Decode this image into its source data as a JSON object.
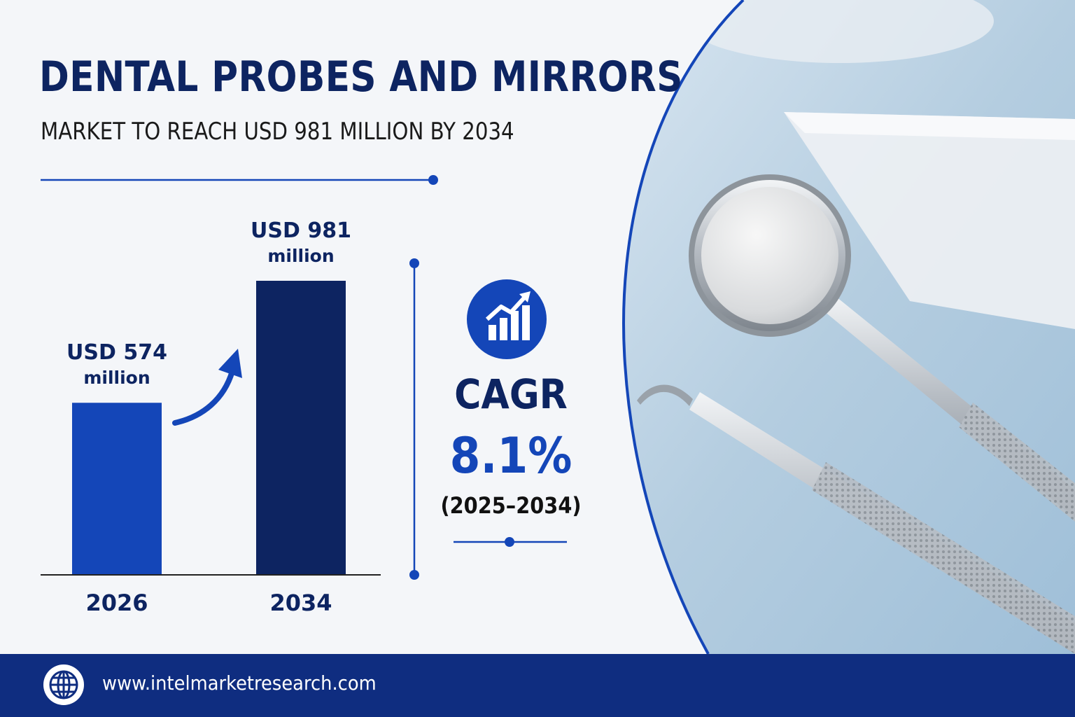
{
  "header": {
    "title": "DENTAL PROBES AND MIRRORS",
    "subtitle": "MARKET TO REACH USD 981 MILLION BY 2034"
  },
  "chart_data": {
    "type": "bar",
    "categories": [
      "2026",
      "2034"
    ],
    "values": [
      574,
      981
    ],
    "unit": "USD million",
    "data_labels": [
      {
        "line1": "USD 574",
        "line2": "million"
      },
      {
        "line1": "USD 981",
        "line2": "million"
      }
    ],
    "colors": [
      "#1446b8",
      "#0d2461"
    ],
    "ylim": [
      0,
      981
    ],
    "grid": false
  },
  "cagr": {
    "label": "CAGR",
    "value": "8.1%",
    "period": "(2025–2034)",
    "icon": "growth-chart-icon"
  },
  "footer": {
    "url": "www.intelmarketresearch.com",
    "icon": "globe-icon"
  },
  "colors": {
    "navy": "#0d2461",
    "blue": "#1446b8",
    "footer": "#0f2d80",
    "background": "#f4f6f9"
  }
}
